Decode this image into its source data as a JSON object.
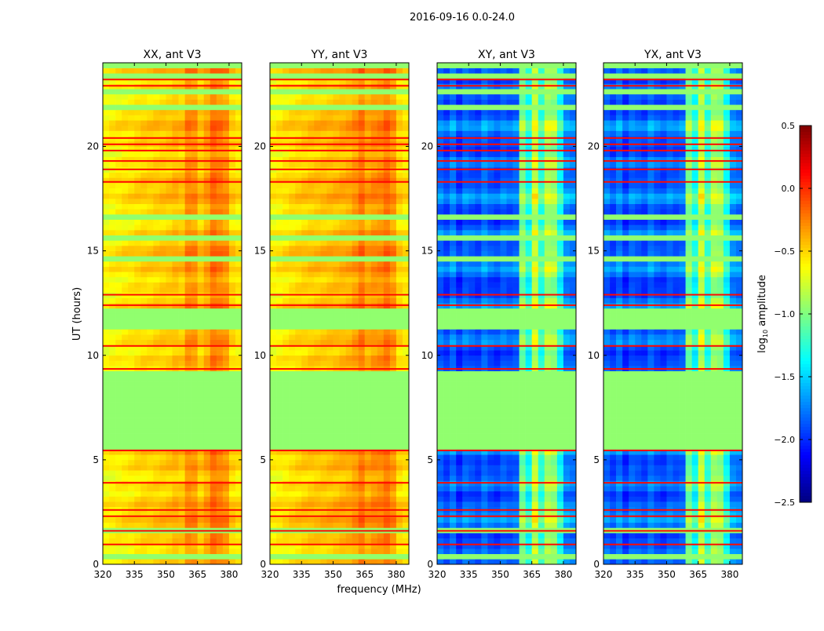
{
  "chart_data": {
    "type": "heatmap",
    "title": "2016-09-16 0.0-24.0",
    "xlabel": "frequency (MHz)",
    "ylabel": "UT (hours)",
    "xlim": [
      320,
      386
    ],
    "ylim": [
      0,
      24
    ],
    "xticks": [
      "320",
      "335",
      "350",
      "365",
      "380"
    ],
    "yticks": [
      "0",
      "5",
      "10",
      "15",
      "20"
    ],
    "colorbar": {
      "label_main": "log",
      "label_sub": "10",
      "label_rest": " amplitude",
      "range": [
        -2.5,
        0.5
      ],
      "ticks": [
        "0.5",
        "0.0",
        "−0.5",
        "−1.0",
        "−1.5",
        "−2.0",
        "−2.5"
      ],
      "colormap": "jet"
    },
    "freq_bin_mhz": 3,
    "time_bin_hours": 0.25,
    "flagged_value": -0.95,
    "flagged_intervals_hours": [
      [
        0.35,
        0.55
      ],
      [
        1.55,
        1.75
      ],
      [
        5.45,
        9.35
      ],
      [
        11.15,
        12.2
      ],
      [
        14.55,
        14.75
      ],
      [
        15.6,
        15.8
      ],
      [
        16.55,
        16.75
      ],
      [
        20.7,
        20.85
      ],
      [
        21.75,
        21.95
      ],
      [
        22.5,
        22.8
      ],
      [
        23.3,
        23.6
      ],
      [
        23.85,
        24.0
      ]
    ],
    "high_lines_hours": [
      0.95,
      1.6,
      2.3,
      2.6,
      3.9,
      5.45,
      9.35,
      10.45,
      12.4,
      12.9,
      18.3,
      18.9,
      19.3,
      19.8,
      20.1,
      20.4,
      22.9,
      23.2
    ],
    "high_line_value": 0.1,
    "panels": [
      {
        "title": "XX, ant V3",
        "freq_profile": [
          -0.62,
          -0.6,
          -0.58,
          -0.56,
          -0.55,
          -0.52,
          -0.5,
          -0.5,
          -0.48,
          -0.47,
          -0.46,
          -0.42,
          -0.45,
          -0.28,
          -0.3,
          -0.45,
          -0.35,
          -0.2,
          -0.25,
          -0.3,
          -0.5,
          -0.55
        ]
      },
      {
        "title": "YY, ant V3",
        "freq_profile": [
          -0.6,
          -0.58,
          -0.55,
          -0.52,
          -0.5,
          -0.48,
          -0.46,
          -0.45,
          -0.44,
          -0.43,
          -0.42,
          -0.4,
          -0.38,
          -0.32,
          -0.22,
          -0.35,
          -0.3,
          -0.28,
          -0.2,
          -0.3,
          -0.5,
          -0.55
        ]
      },
      {
        "title": "XY, ant V3",
        "freq_profile": [
          -1.8,
          -1.9,
          -1.75,
          -1.95,
          -1.8,
          -1.85,
          -1.9,
          -1.75,
          -1.85,
          -1.9,
          -1.8,
          -1.85,
          -1.8,
          -1.0,
          -1.3,
          -0.75,
          -1.2,
          -0.85,
          -0.9,
          -1.3,
          -1.7,
          -1.75
        ]
      },
      {
        "title": "YX, ant V3",
        "freq_profile": [
          -1.8,
          -1.9,
          -1.75,
          -1.95,
          -1.8,
          -1.85,
          -1.9,
          -1.75,
          -1.85,
          -1.9,
          -1.8,
          -1.85,
          -1.8,
          -1.0,
          -1.3,
          -0.75,
          -1.2,
          -0.85,
          -0.9,
          -1.3,
          -1.7,
          -1.75
        ]
      }
    ]
  }
}
